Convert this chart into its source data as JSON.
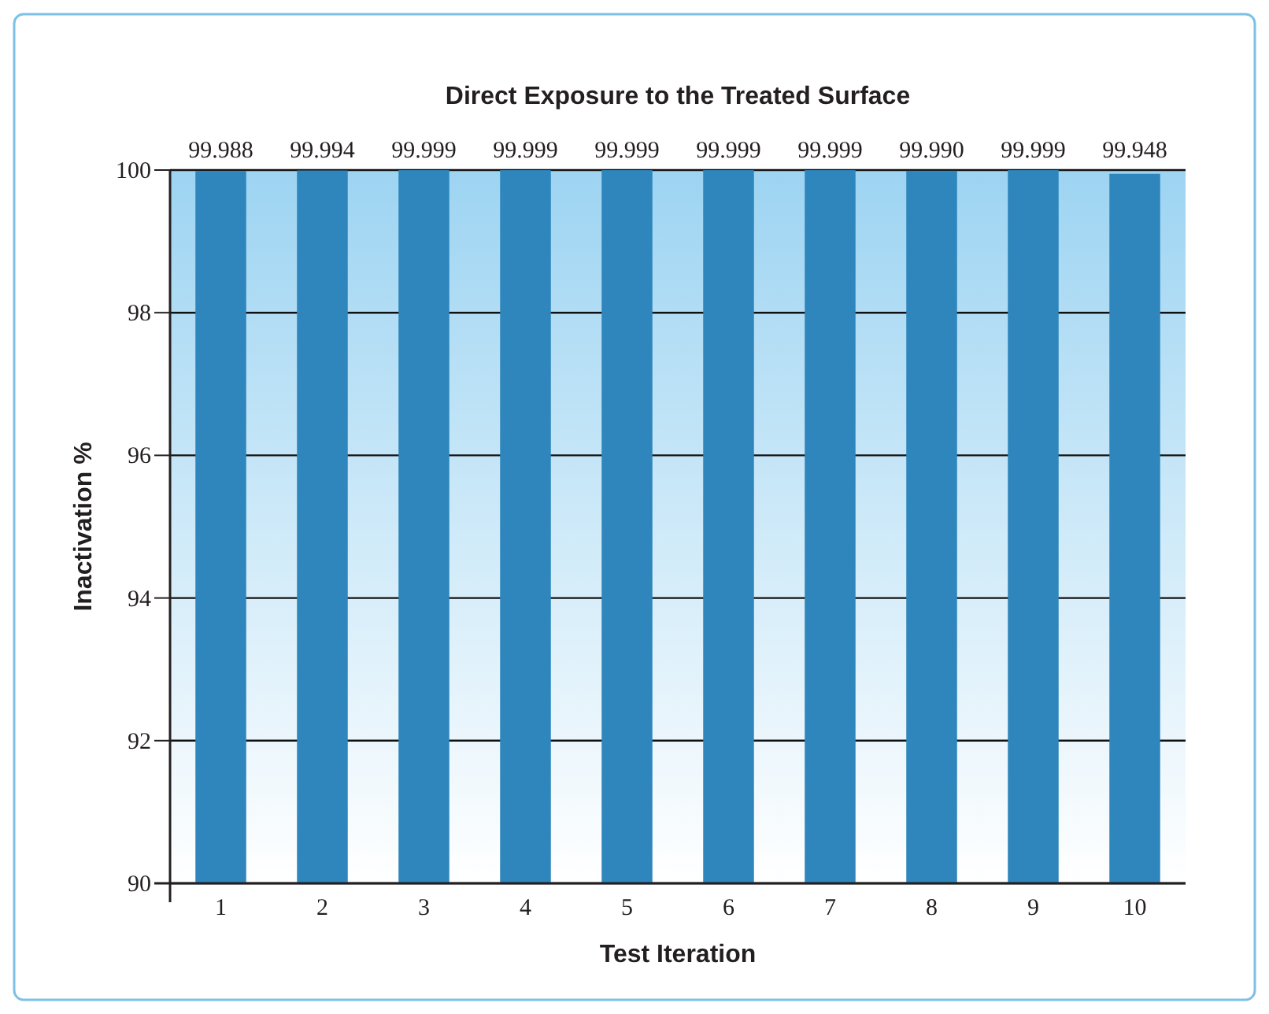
{
  "chart_data": {
    "type": "bar",
    "title": "Direct Exposure to the Treated Surface",
    "xlabel": "Test Iteration",
    "ylabel": "Inactivation %",
    "categories": [
      "1",
      "2",
      "3",
      "4",
      "5",
      "6",
      "7",
      "8",
      "9",
      "10"
    ],
    "values": [
      99.988,
      99.994,
      99.999,
      99.999,
      99.999,
      99.999,
      99.999,
      99.99,
      99.999,
      99.948
    ],
    "value_labels": [
      "99.988",
      "99.994",
      "99.999",
      "99.999",
      "99.999",
      "99.999",
      "99.999",
      "99.990",
      "99.999",
      "99.948"
    ],
    "color": "#2e86bc",
    "ylim": [
      90,
      100
    ],
    "yticks": [
      90,
      92,
      94,
      96,
      98,
      100
    ],
    "grid": "y"
  }
}
